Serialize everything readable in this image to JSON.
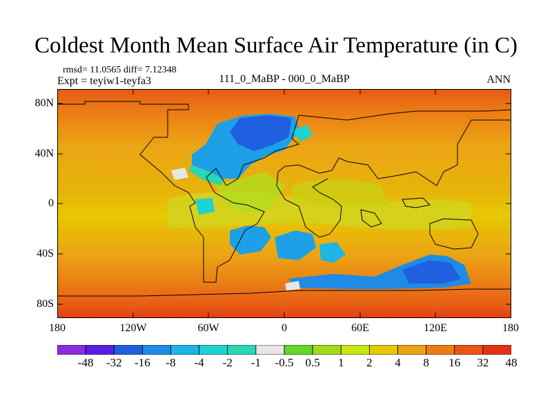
{
  "title": "Coldest Month Mean Surface Air Temperature (in C)",
  "stats": "rmsd= 11.0565 diff= 7.12348",
  "experiment": "Expt = teyiw1-teyfa3",
  "comparison": "111_0_MaBP - 000_0_MaBP",
  "season": "ANN",
  "lat_ticks": [
    "80N",
    "40N",
    "0",
    "40S",
    "80S"
  ],
  "lon_ticks": [
    "180",
    "120W",
    "60W",
    "0",
    "60E",
    "120E",
    "180"
  ],
  "colorbar": {
    "levels": [
      "-48",
      "-32",
      "-16",
      "-8",
      "-4",
      "-2",
      "-1",
      "-0.5",
      "0.5",
      "1",
      "2",
      "4",
      "8",
      "16",
      "32",
      "48"
    ],
    "colors": [
      "#8c2ee0",
      "#5a1ee6",
      "#1f5fe0",
      "#1e8be6",
      "#1eb4e6",
      "#1ed2d2",
      "#28d7b4",
      "#e6e6e6",
      "#64d728",
      "#a0dc1e",
      "#c8e614",
      "#e6c800",
      "#eba514",
      "#eb7d14",
      "#eb5514",
      "#e63214"
    ]
  }
}
